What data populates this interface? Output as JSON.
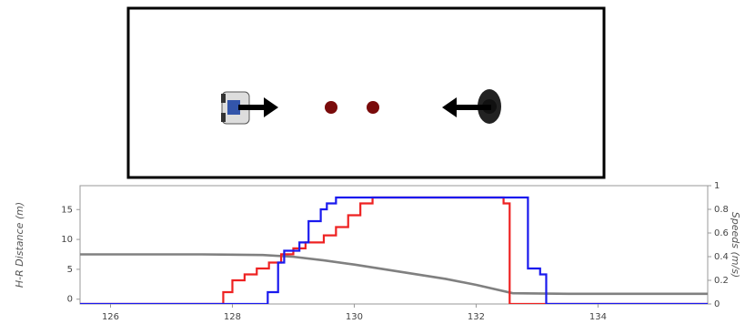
{
  "chart_data": {
    "type": "line",
    "y_label": "H-R Distance (m)",
    "y2_label": "Speeds (m/s)",
    "xlim": [
      125.5,
      135.8
    ],
    "xticks": [
      126,
      128,
      130,
      132,
      134
    ],
    "ylim": [
      -0.8,
      19
    ],
    "yticks": [
      0,
      5,
      10,
      15
    ],
    "y2lim": [
      0,
      1
    ],
    "y2ticks": [
      0,
      0.2,
      0.4,
      0.6,
      0.8,
      1
    ],
    "series": [
      {
        "color": "#808080",
        "axis": "y",
        "x": [
          125.5,
          126.5,
          127.5,
          128.5,
          129.0,
          129.5,
          130.0,
          130.5,
          131.0,
          131.5,
          132.0,
          132.6,
          133.5,
          134.5,
          135.8
        ],
        "values": [
          7.5,
          7.5,
          7.5,
          7.4,
          7.1,
          6.5,
          5.8,
          5.0,
          4.2,
          3.4,
          2.4,
          1.0,
          0.9,
          0.9,
          0.9
        ]
      },
      {
        "color": "#ee2222",
        "axis": "y2",
        "x": [
          125.5,
          127.85,
          127.85,
          128.0,
          128.0,
          128.2,
          128.2,
          128.4,
          128.4,
          128.6,
          128.6,
          128.8,
          128.8,
          129.0,
          129.0,
          129.2,
          129.2,
          129.5,
          129.5,
          129.7,
          129.7,
          129.9,
          129.9,
          130.1,
          130.1,
          130.3,
          130.3,
          132.45,
          132.45,
          132.55,
          132.55,
          135.8
        ],
        "values": [
          0,
          0,
          0.1,
          0.1,
          0.2,
          0.2,
          0.25,
          0.25,
          0.3,
          0.3,
          0.35,
          0.35,
          0.42,
          0.42,
          0.47,
          0.47,
          0.52,
          0.52,
          0.58,
          0.58,
          0.65,
          0.65,
          0.75,
          0.75,
          0.85,
          0.85,
          0.9,
          0.9,
          0.85,
          0.85,
          0,
          0
        ]
      },
      {
        "color": "#1a1aee",
        "axis": "y2",
        "x": [
          125.5,
          128.58,
          128.58,
          128.75,
          128.75,
          128.85,
          128.85,
          129.1,
          129.1,
          129.25,
          129.25,
          129.45,
          129.45,
          129.55,
          129.55,
          129.7,
          129.7,
          132.85,
          132.85,
          133.05,
          133.05,
          133.15,
          133.15,
          135.8
        ],
        "values": [
          0,
          0,
          0.1,
          0.1,
          0.35,
          0.35,
          0.45,
          0.45,
          0.52,
          0.52,
          0.7,
          0.7,
          0.8,
          0.8,
          0.85,
          0.85,
          0.9,
          0.9,
          0.3,
          0.3,
          0.25,
          0.25,
          0,
          0
        ]
      }
    ]
  }
}
